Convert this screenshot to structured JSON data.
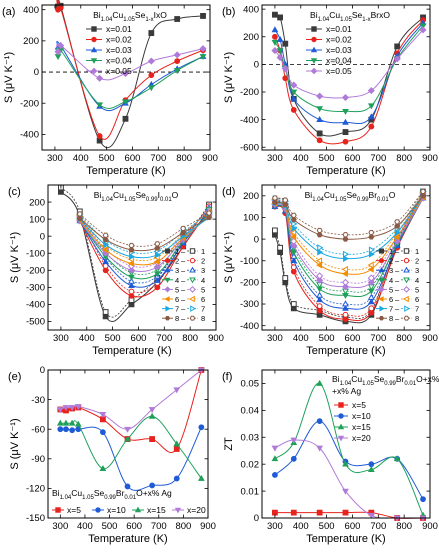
{
  "colors": {
    "black": "#3a3a3a",
    "red": "#e8221c",
    "blue": "#1f5bd6",
    "green": "#1fa05a",
    "orange": "#f28c00",
    "pink": "#e6208c",
    "violet": "#b07ad8",
    "cyan": "#19a8e0",
    "brown": "#8a5a44"
  },
  "chart_data": [
    {
      "panel": "(a)",
      "type": "line",
      "title": "Bi1.04Cu1.05Se1-xIxO",
      "xlabel": "Temperature (K)",
      "ylabel": "S (μV K⁻¹)",
      "xlim": [
        250,
        900
      ],
      "ylim": [
        -500,
        430
      ],
      "xticks": [
        300,
        400,
        500,
        600,
        700,
        800,
        900
      ],
      "yticks": [
        -400,
        -200,
        0,
        200,
        400
      ],
      "zero_line": true,
      "legend_position": "top-center",
      "series": [
        {
          "name": "x=0.01",
          "color_key": "black",
          "marker": "square",
          "x": [
            312,
            322,
            473,
            573,
            673,
            773,
            873
          ],
          "y": [
            420,
            425,
            -440,
            -300,
            250,
            340,
            360
          ]
        },
        {
          "name": "x=0.02",
          "color_key": "red",
          "marker": "circle",
          "x": [
            312,
            322,
            473,
            573,
            673,
            773,
            873
          ],
          "y": [
            400,
            410,
            -410,
            -180,
            -20,
            70,
            140
          ]
        },
        {
          "name": "x=0.03",
          "color_key": "blue",
          "marker": "triangle-up",
          "x": [
            312,
            322,
            473,
            573,
            673,
            773,
            873
          ],
          "y": [
            160,
            170,
            -220,
            -200,
            -80,
            20,
            100
          ]
        },
        {
          "name": "x=0.04",
          "color_key": "green",
          "marker": "triangle-down",
          "x": [
            312,
            322,
            473,
            573,
            673,
            773,
            873
          ],
          "y": [
            100,
            140,
            -210,
            -190,
            -100,
            10,
            100
          ]
        },
        {
          "name": "x=0.05",
          "color_key": "violet",
          "marker": "diamond",
          "x": [
            312,
            322,
            473,
            573,
            673,
            773,
            873
          ],
          "y": [
            130,
            170,
            -40,
            -10,
            70,
            110,
            150
          ]
        }
      ]
    },
    {
      "panel": "(b)",
      "type": "line",
      "title": "Bi1.04Cu1.05Se1-xBrxO",
      "xlabel": "Temperature (K)",
      "ylabel": "S (μV K⁻¹)",
      "xlim": [
        250,
        900
      ],
      "ylim": [
        -620,
        430
      ],
      "xticks": [
        300,
        400,
        500,
        600,
        700,
        800,
        900
      ],
      "yticks": [
        -600,
        -400,
        -200,
        0,
        200,
        400
      ],
      "zero_line": true,
      "legend_position": "top-center",
      "series": [
        {
          "name": "x=0.01",
          "color_key": "black",
          "marker": "square",
          "x": [
            300,
            320,
            340,
            373,
            473,
            573,
            673,
            773,
            873
          ],
          "y": [
            360,
            340,
            150,
            -250,
            -500,
            -490,
            -400,
            130,
            340
          ]
        },
        {
          "name": "x=0.02",
          "color_key": "red",
          "marker": "circle",
          "x": [
            300,
            320,
            340,
            373,
            473,
            573,
            673,
            773,
            873
          ],
          "y": [
            200,
            100,
            -100,
            -330,
            -550,
            -560,
            -450,
            80,
            320
          ]
        },
        {
          "name": "x=0.03",
          "color_key": "blue",
          "marker": "triangle-up",
          "x": [
            300,
            320,
            340,
            373,
            473,
            573,
            673,
            773,
            873
          ],
          "y": [
            250,
            180,
            0,
            -250,
            -400,
            -420,
            -380,
            60,
            300
          ]
        },
        {
          "name": "x=0.04",
          "color_key": "green",
          "marker": "triangle-down",
          "x": [
            300,
            320,
            340,
            373,
            473,
            573,
            673,
            773,
            873
          ],
          "y": [
            160,
            100,
            -30,
            -200,
            -320,
            -340,
            -300,
            40,
            280
          ]
        },
        {
          "name": "x=0.05",
          "color_key": "violet",
          "marker": "diamond",
          "x": [
            300,
            320,
            340,
            373,
            473,
            573,
            673,
            773,
            873
          ],
          "y": [
            100,
            50,
            -30,
            -150,
            -230,
            -240,
            -190,
            40,
            250
          ]
        }
      ]
    },
    {
      "panel": "(c)",
      "type": "line",
      "title": "Bi1.04Cu1.05Se0.99I0.01O",
      "xlabel": "Temperature (K)",
      "ylabel": "S (μV K⁻¹)",
      "xlim": [
        250,
        900
      ],
      "ylim": [
        -550,
        300
      ],
      "xticks": [
        300,
        400,
        500,
        600,
        700,
        800,
        900
      ],
      "yticks": [
        -500,
        -400,
        -300,
        -200,
        -100,
        0,
        100,
        200
      ],
      "legend_position": "bottom-right",
      "legend_left": [
        "1",
        "2",
        "3",
        "4",
        "5",
        "6",
        "7",
        "8"
      ],
      "legend_right": [
        "1",
        "2",
        "3",
        "4",
        "5",
        "6",
        "7",
        "8"
      ],
      "series": [
        {
          "name": "1",
          "color_key": "black",
          "marker": "square",
          "x": [
            300,
            373,
            473,
            573,
            673,
            773,
            873
          ],
          "y": [
            260,
            120,
            -470,
            -400,
            -270,
            -60,
            160
          ]
        },
        {
          "name": "2",
          "color_key": "red",
          "marker": "circle",
          "x": [
            373,
            473,
            573,
            673,
            773,
            873
          ],
          "y": [
            90,
            -200,
            -350,
            -300,
            -60,
            150
          ]
        },
        {
          "name": "3",
          "color_key": "blue",
          "marker": "triangle-up",
          "x": [
            373,
            473,
            573,
            673,
            773,
            873
          ],
          "y": [
            90,
            -150,
            -290,
            -260,
            -40,
            140
          ]
        },
        {
          "name": "4",
          "color_key": "green",
          "marker": "triangle-down",
          "x": [
            373,
            473,
            573,
            673,
            773,
            873
          ],
          "y": [
            90,
            -120,
            -240,
            -220,
            -30,
            130
          ]
        },
        {
          "name": "5",
          "color_key": "violet",
          "marker": "diamond",
          "x": [
            373,
            473,
            573,
            673,
            773,
            873
          ],
          "y": [
            90,
            -100,
            -200,
            -180,
            -20,
            120
          ]
        },
        {
          "name": "6",
          "color_key": "orange",
          "marker": "triangle-left",
          "x": [
            373,
            473,
            573,
            673,
            773,
            873
          ],
          "y": [
            95,
            -80,
            -160,
            -150,
            -10,
            115
          ]
        },
        {
          "name": "7",
          "color_key": "cyan",
          "marker": "triangle-right",
          "x": [
            373,
            473,
            573,
            673,
            773,
            873
          ],
          "y": [
            100,
            -50,
            -120,
            -110,
            0,
            110
          ]
        },
        {
          "name": "8",
          "color_key": "brown",
          "marker": "hexagon",
          "x": [
            373,
            473,
            573,
            673,
            773,
            873
          ],
          "y": [
            105,
            -20,
            -80,
            -70,
            20,
            110
          ]
        }
      ]
    },
    {
      "panel": "(d)",
      "type": "line",
      "title": "Bi1.04Cu1.05Se0.99Br0.01O",
      "xlabel": "Temperature (K)",
      "ylabel": "S (μV K⁻¹)",
      "xlim": [
        250,
        900
      ],
      "ylim": [
        -420,
        250
      ],
      "xticks": [
        300,
        400,
        500,
        600,
        700,
        800,
        900
      ],
      "yticks": [
        -400,
        -300,
        -200,
        -100,
        0,
        100,
        200
      ],
      "legend_position": "bottom-right",
      "legend_left": [
        "1",
        "2",
        "3",
        "4",
        "5",
        "6",
        "7",
        "8"
      ],
      "legend_right": [
        "1",
        "2",
        "3",
        "4",
        "5",
        "6",
        "7",
        "8"
      ],
      "series": [
        {
          "name": "1",
          "color_key": "black",
          "marker": "square",
          "x": [
            300,
            320,
            340,
            373,
            473,
            573,
            673,
            773,
            873
          ],
          "y": [
            20,
            -60,
            -200,
            -320,
            -350,
            -380,
            -350,
            -30,
            200
          ]
        },
        {
          "name": "2",
          "color_key": "red",
          "marker": "circle",
          "x": [
            300,
            340,
            373,
            473,
            573,
            673,
            773,
            873
          ],
          "y": [
            150,
            120,
            -150,
            -330,
            -370,
            -340,
            -40,
            190
          ]
        },
        {
          "name": "3",
          "color_key": "blue",
          "marker": "triangle-up",
          "x": [
            300,
            340,
            373,
            473,
            573,
            673,
            773,
            873
          ],
          "y": [
            150,
            130,
            -100,
            -280,
            -320,
            -290,
            -30,
            190
          ]
        },
        {
          "name": "4",
          "color_key": "green",
          "marker": "triangle-down",
          "x": [
            300,
            340,
            373,
            473,
            573,
            673,
            773,
            873
          ],
          "y": [
            155,
            135,
            -60,
            -230,
            -260,
            -240,
            -20,
            190
          ]
        },
        {
          "name": "5",
          "color_key": "violet",
          "marker": "diamond",
          "x": [
            300,
            340,
            373,
            473,
            573,
            673,
            773,
            873
          ],
          "y": [
            160,
            140,
            -30,
            -190,
            -220,
            -200,
            -10,
            190
          ]
        },
        {
          "name": "6",
          "color_key": "orange",
          "marker": "triangle-left",
          "x": [
            300,
            340,
            373,
            473,
            573,
            673,
            773,
            873
          ],
          "y": [
            165,
            150,
            10,
            -120,
            -160,
            -140,
            10,
            195
          ]
        },
        {
          "name": "7",
          "color_key": "cyan",
          "marker": "triangle-right",
          "x": [
            300,
            340,
            373,
            473,
            573,
            673,
            773,
            873
          ],
          "y": [
            165,
            155,
            50,
            -60,
            -90,
            -70,
            30,
            200
          ]
        },
        {
          "name": "8",
          "color_key": "brown",
          "marker": "hexagon",
          "x": [
            300,
            340,
            373,
            473,
            573,
            673,
            773,
            873
          ],
          "y": [
            170,
            160,
            90,
            20,
            0,
            10,
            60,
            200
          ]
        }
      ]
    },
    {
      "panel": "(e)",
      "type": "line",
      "title": "Bi1.04Cu1.05Se0.99Br0.01O+x% Ag",
      "xlabel": "Temperature (K)",
      "ylabel": "S (μV K⁻¹)",
      "xlim": [
        250,
        900
      ],
      "ylim": [
        -150,
        0
      ],
      "xticks": [
        300,
        400,
        500,
        600,
        700,
        800,
        900
      ],
      "yticks": [
        -150,
        -120,
        -90,
        -60,
        -30,
        0
      ],
      "legend_position": "bottom",
      "legend_columns": 4,
      "series": [
        {
          "name": "x=5",
          "color_key": "red",
          "marker": "square",
          "x": [
            300,
            323,
            348,
            373,
            473,
            573,
            673,
            773,
            873
          ],
          "y": [
            -40,
            -41,
            -39,
            -38,
            -50,
            -70,
            -70,
            -80,
            0
          ]
        },
        {
          "name": "x=10",
          "color_key": "blue",
          "marker": "circle",
          "x": [
            300,
            323,
            348,
            373,
            473,
            573,
            673,
            773,
            873
          ],
          "y": [
            -60,
            -60,
            -61,
            -60,
            -63,
            -118,
            -117,
            -110,
            -58
          ]
        },
        {
          "name": "x=15",
          "color_key": "green",
          "marker": "triangle-up",
          "x": [
            300,
            323,
            348,
            373,
            473,
            573,
            673,
            773,
            873
          ],
          "y": [
            -54,
            -54,
            -54,
            -55,
            -100,
            -70,
            -47,
            -75,
            -110
          ]
        },
        {
          "name": "x=20",
          "color_key": "violet",
          "marker": "triangle-down",
          "x": [
            300,
            323,
            348,
            373,
            473,
            573,
            673,
            773,
            873
          ],
          "y": [
            -40,
            -38,
            -38,
            -37,
            -45,
            -60,
            -40,
            -20,
            0
          ]
        }
      ]
    },
    {
      "panel": "(f)",
      "type": "line",
      "title": "Bi1.04Cu1.05Se0.99Br0.01O+x% Ag",
      "xlabel": "Temperature (K)",
      "ylabel": "ZT",
      "xlim": [
        250,
        900
      ],
      "ylim": [
        0,
        0.055
      ],
      "xticks": [
        300,
        400,
        500,
        600,
        700,
        800,
        900
      ],
      "yticks": [
        0.0,
        0.01,
        0.02,
        0.03,
        0.04,
        0.05
      ],
      "legend_position": "top-right",
      "series": [
        {
          "name": "x=5",
          "color_key": "red",
          "marker": "square",
          "x": [
            300,
            373,
            473,
            573,
            673,
            773,
            873
          ],
          "y": [
            0.002,
            0.002,
            0.002,
            0.002,
            0.002,
            0.0,
            0.0
          ]
        },
        {
          "name": "x=10",
          "color_key": "blue",
          "marker": "circle",
          "x": [
            300,
            373,
            473,
            573,
            673,
            773,
            873
          ],
          "y": [
            0.016,
            0.022,
            0.036,
            0.021,
            0.02,
            0.022,
            0.007
          ]
        },
        {
          "name": "x=15",
          "color_key": "green",
          "marker": "triangle-up",
          "x": [
            300,
            373,
            473,
            573,
            673,
            773,
            873
          ],
          "y": [
            0.022,
            0.028,
            0.05,
            0.02,
            0.018,
            0.022,
            0.001
          ]
        },
        {
          "name": "x=20",
          "color_key": "violet",
          "marker": "triangle-down",
          "x": [
            300,
            373,
            473,
            573,
            673,
            773,
            873
          ],
          "y": [
            0.026,
            0.029,
            0.026,
            0.01,
            0.001,
            0.0,
            0.0
          ]
        }
      ]
    }
  ]
}
